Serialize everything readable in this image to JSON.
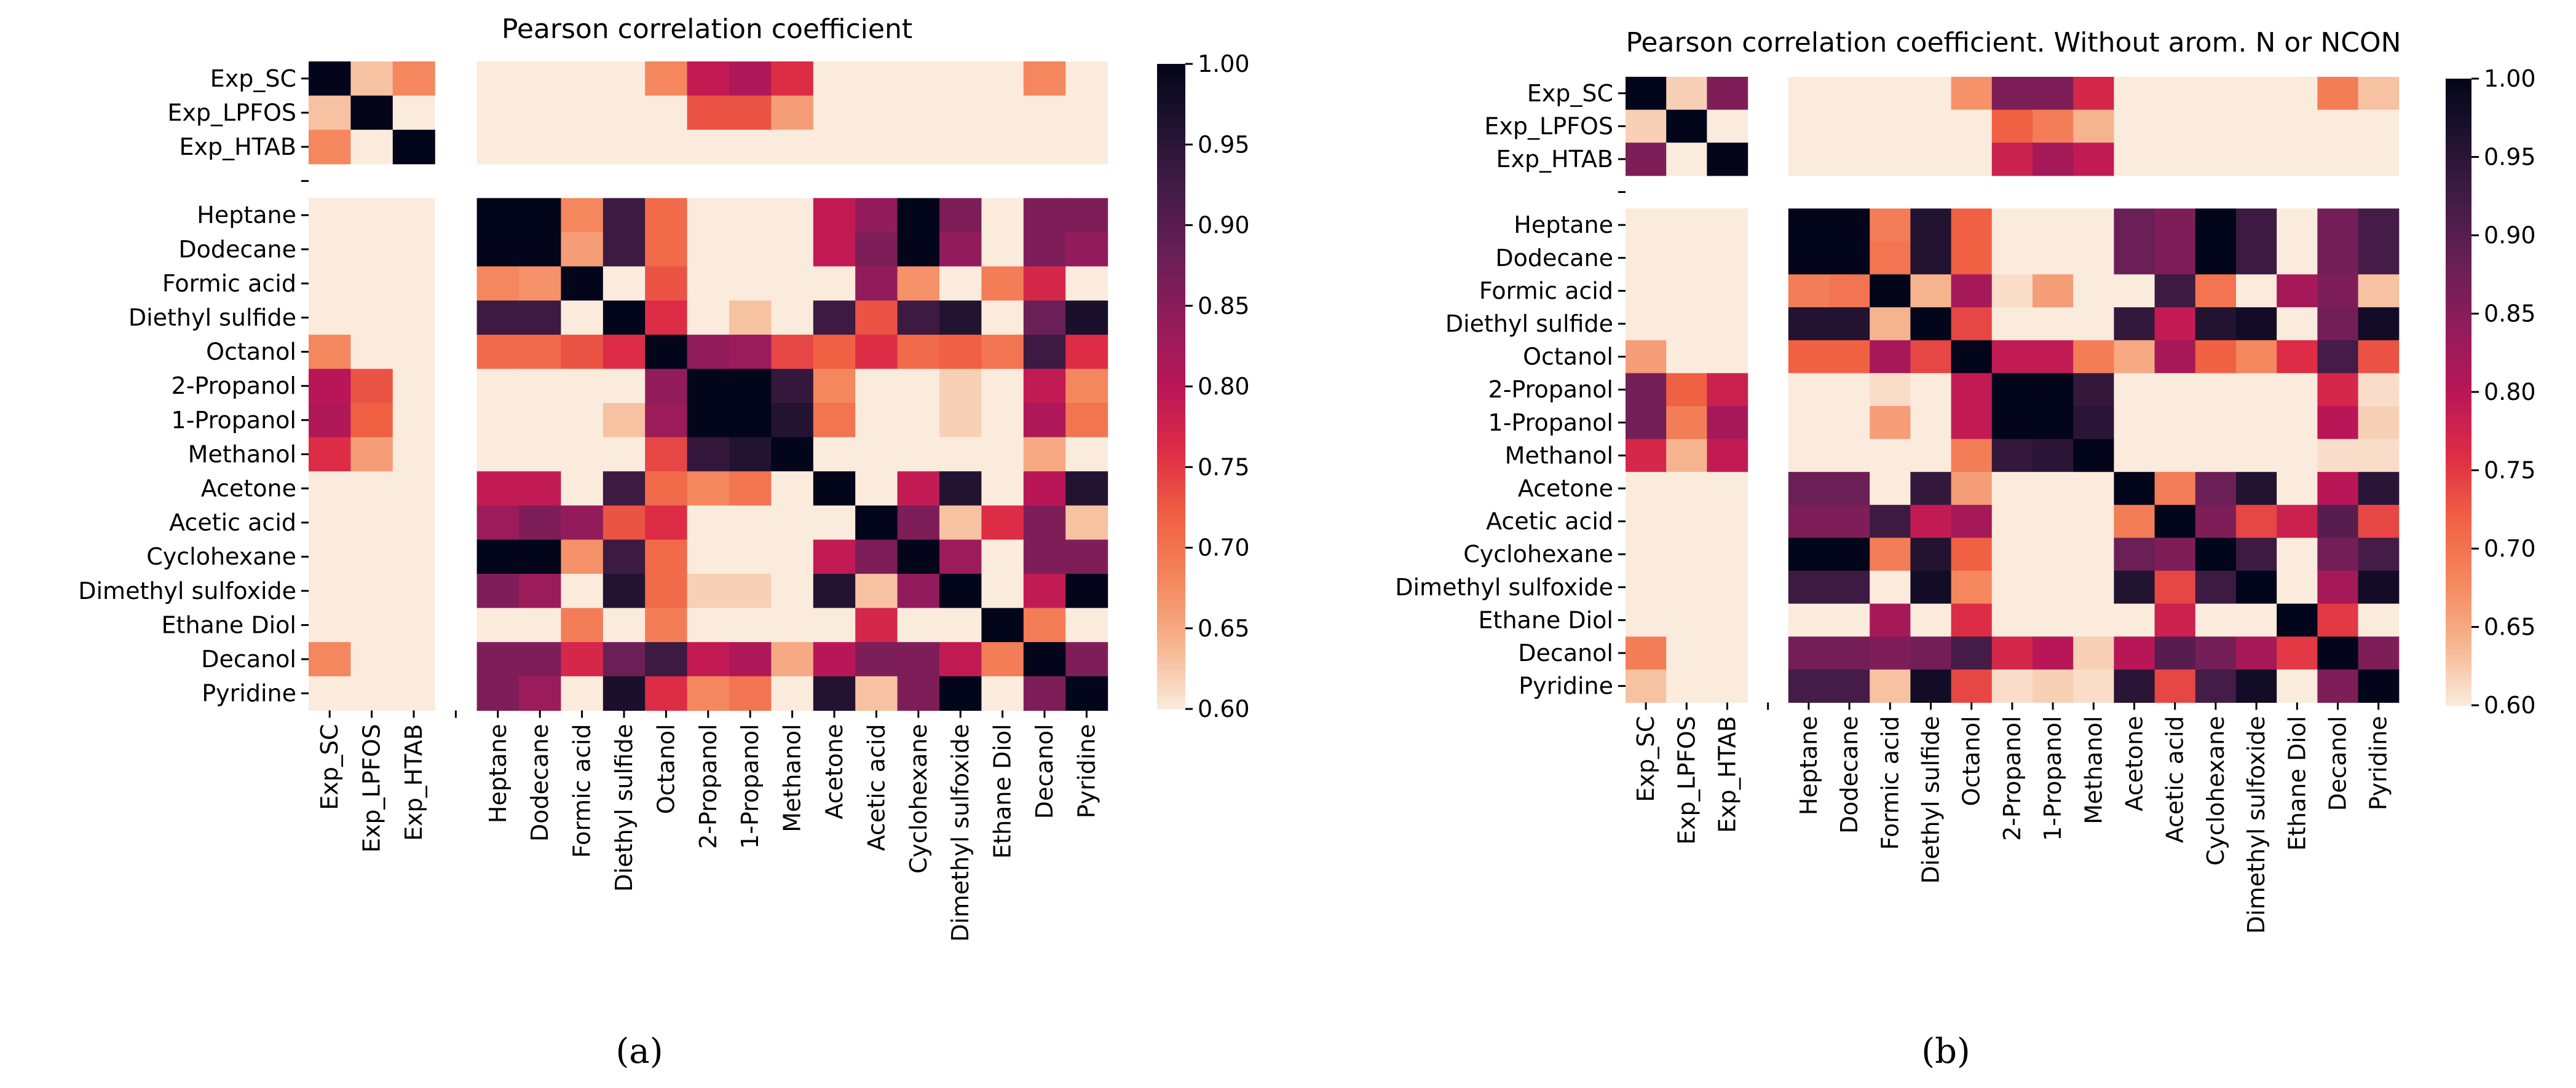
{
  "chart_data": [
    {
      "type": "heatmap",
      "panel_label": "(a)",
      "title": "Pearson correlation coefficient",
      "row_labels": [
        "Exp_SC",
        "Exp_LPFOS",
        "Exp_HTAB",
        "",
        "Heptane",
        "Dodecane",
        "Formic acid",
        "Diethyl sulfide",
        "Octanol",
        "2-Propanol",
        "1-Propanol",
        "Methanol",
        "Acetone",
        "Acetic acid",
        "Cyclohexane",
        "Dimethyl sulfoxide",
        "Ethane Diol",
        "Decanol",
        "Pyridine"
      ],
      "col_labels": [
        "Exp_SC",
        "Exp_LPFOS",
        "Exp_HTAB",
        "",
        "Heptane",
        "Dodecane",
        "Formic acid",
        "Diethyl sulfide",
        "Octanol",
        "2-Propanol",
        "1-Propanol",
        "Methanol",
        "Acetone",
        "Acetic acid",
        "Cyclohexane",
        "Dimethyl sulfoxide",
        "Ethane Diol",
        "Decanol",
        "Pyridine"
      ],
      "vmin": 0.6,
      "vmax": 1.0,
      "colorbar_ticks": [
        "0.60",
        "0.65",
        "0.70",
        "0.75",
        "0.80",
        "0.85",
        "0.90",
        "0.95",
        "1.00"
      ],
      "colormap": "rocket_r",
      "values": [
        [
          1,
          0.63,
          0.68,
          null,
          0.6,
          0.6,
          0.6,
          0.6,
          0.68,
          0.79,
          0.81,
          0.76,
          0.6,
          0.6,
          0.6,
          0.6,
          0.6,
          0.68,
          0.6
        ],
        [
          0.63,
          1,
          0.6,
          null,
          0.6,
          0.6,
          0.6,
          0.6,
          0.6,
          0.73,
          0.73,
          0.66,
          0.6,
          0.6,
          0.6,
          0.6,
          0.6,
          0.6,
          0.6
        ],
        [
          0.68,
          0.6,
          1,
          null,
          0.6,
          0.6,
          0.6,
          0.6,
          0.6,
          0.6,
          0.6,
          0.6,
          0.6,
          0.6,
          0.6,
          0.6,
          0.6,
          0.6,
          0.6
        ],
        [
          null,
          null,
          null,
          null,
          null,
          null,
          null,
          null,
          null,
          null,
          null,
          null,
          null,
          null,
          null,
          null,
          null,
          null,
          null
        ],
        [
          0.6,
          0.6,
          0.6,
          null,
          1,
          1,
          0.68,
          0.93,
          0.71,
          0.6,
          0.6,
          0.6,
          0.79,
          0.84,
          1,
          0.86,
          0.6,
          0.86,
          0.86
        ],
        [
          0.6,
          0.6,
          0.6,
          null,
          1,
          1,
          0.66,
          0.93,
          0.71,
          0.6,
          0.6,
          0.6,
          0.79,
          0.86,
          1,
          0.84,
          0.6,
          0.86,
          0.84
        ],
        [
          0.6,
          0.6,
          0.6,
          null,
          0.68,
          0.67,
          1,
          0.6,
          0.73,
          0.6,
          0.6,
          0.6,
          0.6,
          0.84,
          0.67,
          0.6,
          0.69,
          0.77,
          0.6
        ],
        [
          0.6,
          0.6,
          0.6,
          null,
          0.93,
          0.93,
          0.6,
          1,
          0.76,
          0.6,
          0.63,
          0.6,
          0.93,
          0.73,
          0.93,
          0.96,
          0.6,
          0.88,
          0.97
        ],
        [
          0.68,
          0.6,
          0.6,
          null,
          0.71,
          0.71,
          0.73,
          0.76,
          1,
          0.84,
          0.83,
          0.74,
          0.72,
          0.76,
          0.71,
          0.72,
          0.7,
          0.93,
          0.76
        ],
        [
          0.8,
          0.73,
          0.6,
          null,
          0.6,
          0.6,
          0.6,
          0.6,
          0.84,
          1,
          1,
          0.94,
          0.68,
          0.6,
          0.6,
          0.62,
          0.6,
          0.79,
          0.68
        ],
        [
          0.81,
          0.72,
          0.6,
          null,
          0.6,
          0.6,
          0.6,
          0.63,
          0.83,
          1,
          1,
          0.96,
          0.7,
          0.6,
          0.6,
          0.62,
          0.6,
          0.81,
          0.7
        ],
        [
          0.76,
          0.66,
          0.6,
          null,
          0.6,
          0.6,
          0.6,
          0.6,
          0.74,
          0.94,
          0.96,
          1,
          0.6,
          0.6,
          0.6,
          0.6,
          0.6,
          0.65,
          0.6
        ],
        [
          0.6,
          0.6,
          0.6,
          null,
          0.79,
          0.79,
          0.6,
          0.93,
          0.71,
          0.68,
          0.7,
          0.6,
          1,
          0.6,
          0.79,
          0.96,
          0.6,
          0.8,
          0.96
        ],
        [
          0.6,
          0.6,
          0.6,
          null,
          0.83,
          0.86,
          0.84,
          0.73,
          0.76,
          0.6,
          0.6,
          0.6,
          0.6,
          1,
          0.86,
          0.63,
          0.76,
          0.86,
          0.63
        ],
        [
          0.6,
          0.6,
          0.6,
          null,
          1,
          1,
          0.67,
          0.93,
          0.71,
          0.6,
          0.6,
          0.6,
          0.79,
          0.86,
          1,
          0.83,
          0.6,
          0.86,
          0.86
        ],
        [
          0.6,
          0.6,
          0.6,
          null,
          0.86,
          0.83,
          0.6,
          0.96,
          0.71,
          0.62,
          0.62,
          0.6,
          0.96,
          0.63,
          0.84,
          1,
          0.6,
          0.79,
          1
        ],
        [
          0.6,
          0.6,
          0.6,
          null,
          0.6,
          0.6,
          0.69,
          0.6,
          0.69,
          0.6,
          0.6,
          0.6,
          0.6,
          0.77,
          0.6,
          0.6,
          1,
          0.69,
          0.6
        ],
        [
          0.68,
          0.6,
          0.6,
          null,
          0.86,
          0.86,
          0.77,
          0.88,
          0.93,
          0.79,
          0.81,
          0.65,
          0.8,
          0.86,
          0.86,
          0.79,
          0.69,
          1,
          0.86
        ],
        [
          0.6,
          0.6,
          0.6,
          null,
          0.86,
          0.83,
          0.6,
          0.97,
          0.76,
          0.68,
          0.7,
          0.6,
          0.96,
          0.63,
          0.86,
          1,
          0.6,
          0.86,
          1
        ]
      ]
    },
    {
      "type": "heatmap",
      "panel_label": "(b)",
      "title": "Pearson correlation coefficient. Without arom. N or NCON",
      "row_labels": [
        "Exp_SC",
        "Exp_LPFOS",
        "Exp_HTAB",
        "",
        "Heptane",
        "Dodecane",
        "Formic acid",
        "Diethyl sulfide",
        "Octanol",
        "2-Propanol",
        "1-Propanol",
        "Methanol",
        "Acetone",
        "Acetic acid",
        "Cyclohexane",
        "Dimethyl sulfoxide",
        "Ethane Diol",
        "Decanol",
        "Pyridine"
      ],
      "col_labels": [
        "Exp_SC",
        "Exp_LPFOS",
        "Exp_HTAB",
        "",
        "Heptane",
        "Dodecane",
        "Formic acid",
        "Diethyl sulfide",
        "Octanol",
        "2-Propanol",
        "1-Propanol",
        "Methanol",
        "Acetone",
        "Acetic acid",
        "Cyclohexane",
        "Dimethyl sulfoxide",
        "Ethane Diol",
        "Decanol",
        "Pyridine"
      ],
      "vmin": 0.6,
      "vmax": 1.0,
      "colorbar_ticks": [
        "0.60",
        "0.65",
        "0.70",
        "0.75",
        "0.80",
        "0.85",
        "0.90",
        "0.95",
        "1.00"
      ],
      "colormap": "rocket_r",
      "values": [
        [
          1,
          0.62,
          0.86,
          null,
          0.6,
          0.6,
          0.6,
          0.6,
          0.67,
          0.86,
          0.86,
          0.77,
          0.6,
          0.6,
          0.6,
          0.6,
          0.6,
          0.69,
          0.63
        ],
        [
          0.62,
          1,
          0.6,
          null,
          0.6,
          0.6,
          0.6,
          0.6,
          0.6,
          0.72,
          0.69,
          0.64,
          0.6,
          0.6,
          0.6,
          0.6,
          0.6,
          0.6,
          0.6
        ],
        [
          0.86,
          0.6,
          1,
          null,
          0.6,
          0.6,
          0.6,
          0.6,
          0.6,
          0.78,
          0.82,
          0.79,
          0.6,
          0.6,
          0.6,
          0.6,
          0.6,
          0.6,
          0.6
        ],
        [
          null,
          null,
          null,
          null,
          null,
          null,
          null,
          null,
          null,
          null,
          null,
          null,
          null,
          null,
          null,
          null,
          null,
          null,
          null
        ],
        [
          0.6,
          0.6,
          0.6,
          null,
          1,
          1,
          0.69,
          0.96,
          0.72,
          0.6,
          0.6,
          0.6,
          0.88,
          0.86,
          1,
          0.93,
          0.6,
          0.87,
          0.92
        ],
        [
          0.6,
          0.6,
          0.6,
          null,
          1,
          1,
          0.7,
          0.96,
          0.72,
          0.6,
          0.6,
          0.6,
          0.88,
          0.86,
          1,
          0.93,
          0.6,
          0.87,
          0.92
        ],
        [
          0.6,
          0.6,
          0.6,
          null,
          0.69,
          0.7,
          1,
          0.64,
          0.82,
          0.61,
          0.66,
          0.6,
          0.6,
          0.93,
          0.7,
          0.6,
          0.82,
          0.86,
          0.63
        ],
        [
          0.6,
          0.6,
          0.6,
          null,
          0.96,
          0.96,
          0.64,
          1,
          0.74,
          0.6,
          0.6,
          0.6,
          0.94,
          0.79,
          0.96,
          0.98,
          0.6,
          0.87,
          0.98
        ],
        [
          0.66,
          0.6,
          0.6,
          null,
          0.72,
          0.72,
          0.82,
          0.74,
          1,
          0.79,
          0.79,
          0.69,
          0.65,
          0.82,
          0.72,
          0.68,
          0.76,
          0.92,
          0.73
        ],
        [
          0.87,
          0.72,
          0.78,
          null,
          0.6,
          0.6,
          0.61,
          0.6,
          0.79,
          1,
          1,
          0.94,
          0.6,
          0.6,
          0.6,
          0.6,
          0.6,
          0.77,
          0.61
        ],
        [
          0.87,
          0.69,
          0.82,
          null,
          0.6,
          0.6,
          0.66,
          0.6,
          0.79,
          1,
          1,
          0.95,
          0.6,
          0.6,
          0.6,
          0.6,
          0.6,
          0.8,
          0.62
        ],
        [
          0.77,
          0.64,
          0.79,
          null,
          0.6,
          0.6,
          0.6,
          0.6,
          0.69,
          0.94,
          0.95,
          1,
          0.6,
          0.6,
          0.6,
          0.6,
          0.6,
          0.61,
          0.61
        ],
        [
          0.6,
          0.6,
          0.6,
          null,
          0.88,
          0.88,
          0.6,
          0.94,
          0.66,
          0.6,
          0.6,
          0.6,
          1,
          0.69,
          0.88,
          0.96,
          0.6,
          0.8,
          0.95
        ],
        [
          0.6,
          0.6,
          0.6,
          null,
          0.86,
          0.86,
          0.93,
          0.79,
          0.82,
          0.6,
          0.6,
          0.6,
          0.69,
          1,
          0.86,
          0.74,
          0.78,
          0.9,
          0.74
        ],
        [
          0.6,
          0.6,
          0.6,
          null,
          1,
          1,
          0.69,
          0.96,
          0.72,
          0.6,
          0.6,
          0.6,
          0.88,
          0.86,
          1,
          0.93,
          0.6,
          0.87,
          0.92
        ],
        [
          0.6,
          0.6,
          0.6,
          null,
          0.93,
          0.93,
          0.6,
          0.98,
          0.68,
          0.6,
          0.6,
          0.6,
          0.96,
          0.74,
          0.93,
          1,
          0.6,
          0.82,
          0.98
        ],
        [
          0.6,
          0.6,
          0.6,
          null,
          0.6,
          0.6,
          0.82,
          0.6,
          0.76,
          0.6,
          0.6,
          0.6,
          0.6,
          0.78,
          0.6,
          0.6,
          1,
          0.75,
          0.6
        ],
        [
          0.69,
          0.6,
          0.6,
          null,
          0.87,
          0.87,
          0.86,
          0.87,
          0.92,
          0.77,
          0.8,
          0.62,
          0.8,
          0.9,
          0.87,
          0.82,
          0.75,
          1,
          0.86
        ],
        [
          0.63,
          0.6,
          0.6,
          null,
          0.92,
          0.92,
          0.63,
          0.98,
          0.74,
          0.61,
          0.62,
          0.61,
          0.95,
          0.74,
          0.92,
          0.98,
          0.6,
          0.86,
          1
        ]
      ]
    }
  ]
}
